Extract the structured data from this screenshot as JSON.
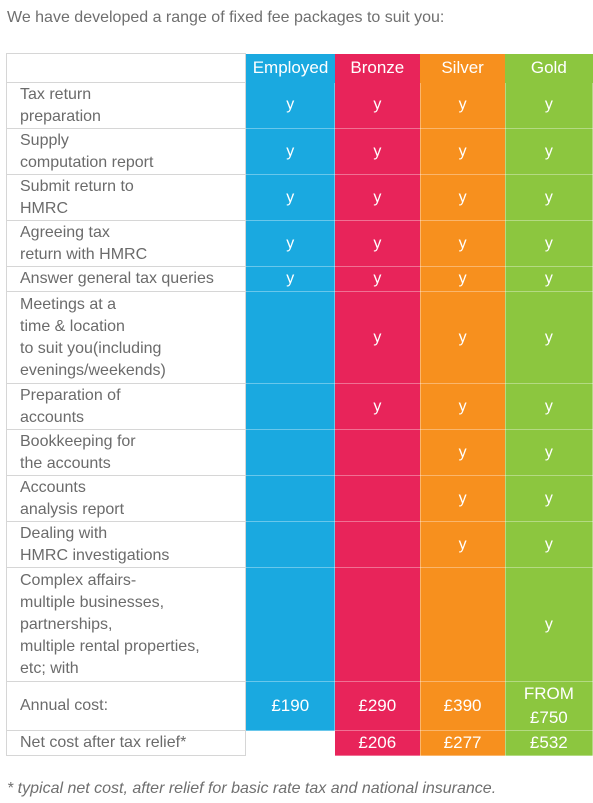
{
  "intro_text": "We have developed a range of fixed fee packages to suit you:",
  "packages": [
    "Employed",
    "Bronze",
    "Silver",
    "Gold"
  ],
  "package_colors": {
    "Employed": "#1aa9e0",
    "Bronze": "#e8245a",
    "Silver": "#f7901e",
    "Gold": "#8cc63f"
  },
  "features": [
    {
      "lines": [
        "Tax return",
        "preparation"
      ],
      "marks": [
        "y",
        "y",
        "y",
        "y"
      ]
    },
    {
      "lines": [
        "Supply",
        "computation report"
      ],
      "marks": [
        "y",
        "y",
        "y",
        "y"
      ]
    },
    {
      "lines": [
        "Submit return to",
        "HMRC"
      ],
      "marks": [
        "y",
        "y",
        "y",
        "y"
      ]
    },
    {
      "lines": [
        "Agreeing tax",
        "return with HMRC"
      ],
      "marks": [
        "y",
        "y",
        "y",
        "y"
      ]
    },
    {
      "lines": [
        "Answer general tax queries"
      ],
      "marks": [
        "y",
        "y",
        "y",
        "y"
      ]
    },
    {
      "lines": [
        "Meetings at a",
        "time & location",
        "to suit you(including",
        "evenings/weekends)"
      ],
      "marks": [
        "",
        "y",
        "y",
        "y"
      ]
    },
    {
      "lines": [
        "Preparation of",
        "accounts"
      ],
      "marks": [
        "",
        "y",
        "y",
        "y"
      ]
    },
    {
      "lines": [
        "Bookkeeping for",
        "the accounts"
      ],
      "marks": [
        "",
        "",
        "y",
        "y"
      ]
    },
    {
      "lines": [
        "Accounts",
        "analysis report"
      ],
      "marks": [
        "",
        "",
        "y",
        "y"
      ]
    },
    {
      "lines": [
        "Dealing with",
        "HMRC investigations"
      ],
      "marks": [
        "",
        "",
        "y",
        "y"
      ]
    },
    {
      "lines": [
        "Complex affairs-",
        "multiple businesses,",
        "partnerships,",
        "multiple rental properties,",
        "etc; with"
      ],
      "marks": [
        "",
        "",
        "",
        "y"
      ]
    }
  ],
  "annual_cost": {
    "label": "Annual cost:",
    "values": [
      "£190",
      "£290",
      "£390",
      "FROM\n£750"
    ]
  },
  "net_cost": {
    "label": "Net cost after tax relief*",
    "values": [
      "",
      "£206",
      "£277",
      "£532"
    ]
  },
  "footnote": "* typical net cost, after relief for basic rate tax and national insurance."
}
